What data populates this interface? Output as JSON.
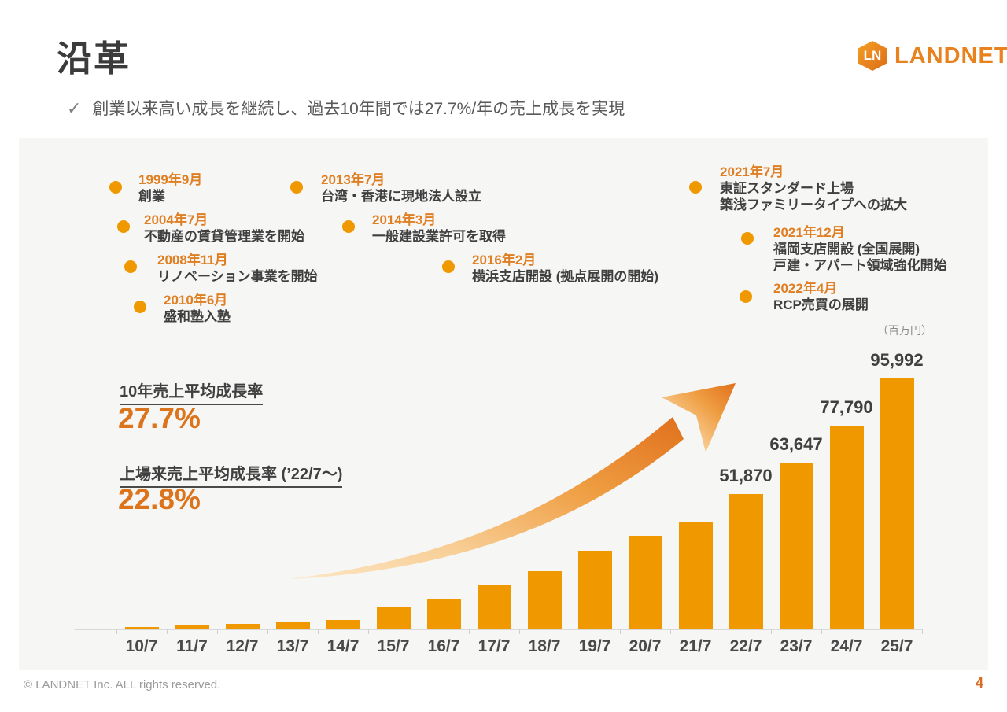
{
  "header": {
    "title": "沿革",
    "checkmark": "✓",
    "bullet": "創業以来高い成長を継続し、過去10年間では27.7%/年の売上成長を実現"
  },
  "logo": {
    "mark": "LN",
    "wordmark": "LANDNET"
  },
  "timeline": {
    "items": [
      {
        "date": "1999年9月",
        "desc1": "創業"
      },
      {
        "date": "2004年7月",
        "desc1": "不動産の賃貸管理業を開始"
      },
      {
        "date": "2008年11月",
        "desc1": "リノベーション事業を開始"
      },
      {
        "date": "2010年6月",
        "desc1": "盛和塾入塾"
      },
      {
        "date": "2013年7月",
        "desc1": "台湾・香港に現地法人設立"
      },
      {
        "date": "2014年3月",
        "desc1": "一般建設業許可を取得"
      },
      {
        "date": "2016年2月",
        "desc1": "横浜支店開設 (拠点展開の開始)"
      },
      {
        "date": "2021年7月",
        "desc1": "東証スタンダード上場",
        "desc2": "築浅ファミリータイプへの拡大"
      },
      {
        "date": "2021年12月",
        "desc1": "福岡支店開設 (全国展開)",
        "desc2": "戸建・アパート領域強化開始"
      },
      {
        "date": "2022年4月",
        "desc1": "RCP売買の展開"
      }
    ]
  },
  "stats": {
    "label1": "10年売上平均成長率",
    "value1": "27.7%",
    "label2": "上場来売上平均成長率 (’22/7〜)",
    "value2": "22.8%"
  },
  "chart_data": {
    "type": "bar",
    "title": "",
    "xlabel": "",
    "ylabel": "",
    "unit_label": "（百万円）",
    "categories": [
      "10/7",
      "11/7",
      "12/7",
      "13/7",
      "14/7",
      "15/7",
      "16/7",
      "17/7",
      "18/7",
      "19/7",
      "20/7",
      "21/7",
      "22/7",
      "23/7",
      "24/7",
      "25/7"
    ],
    "values": [
      900,
      1400,
      2000,
      2700,
      3600,
      8800,
      11800,
      16900,
      22400,
      30100,
      35700,
      41300,
      51870,
      63647,
      77790,
      95992
    ],
    "value_labels": [
      "",
      "",
      "",
      "",
      "",
      "",
      "",
      "",
      "",
      "",
      "",
      "",
      "51,870",
      "63,647",
      "77,790",
      "95,992"
    ],
    "ylim": [
      0,
      96000
    ],
    "grid": false,
    "legend": false,
    "bar_color": "#F09800"
  },
  "colors": {
    "accent_orange": "#F09800",
    "date_orange": "#E07E22",
    "big_number_orange": "#DC741C",
    "panel_bg": "#F6F6F5",
    "dark_text": "#3F3F3F"
  },
  "footer": {
    "copyright": "© LANDNET Inc. ALL rights reserved.",
    "page": "4"
  }
}
